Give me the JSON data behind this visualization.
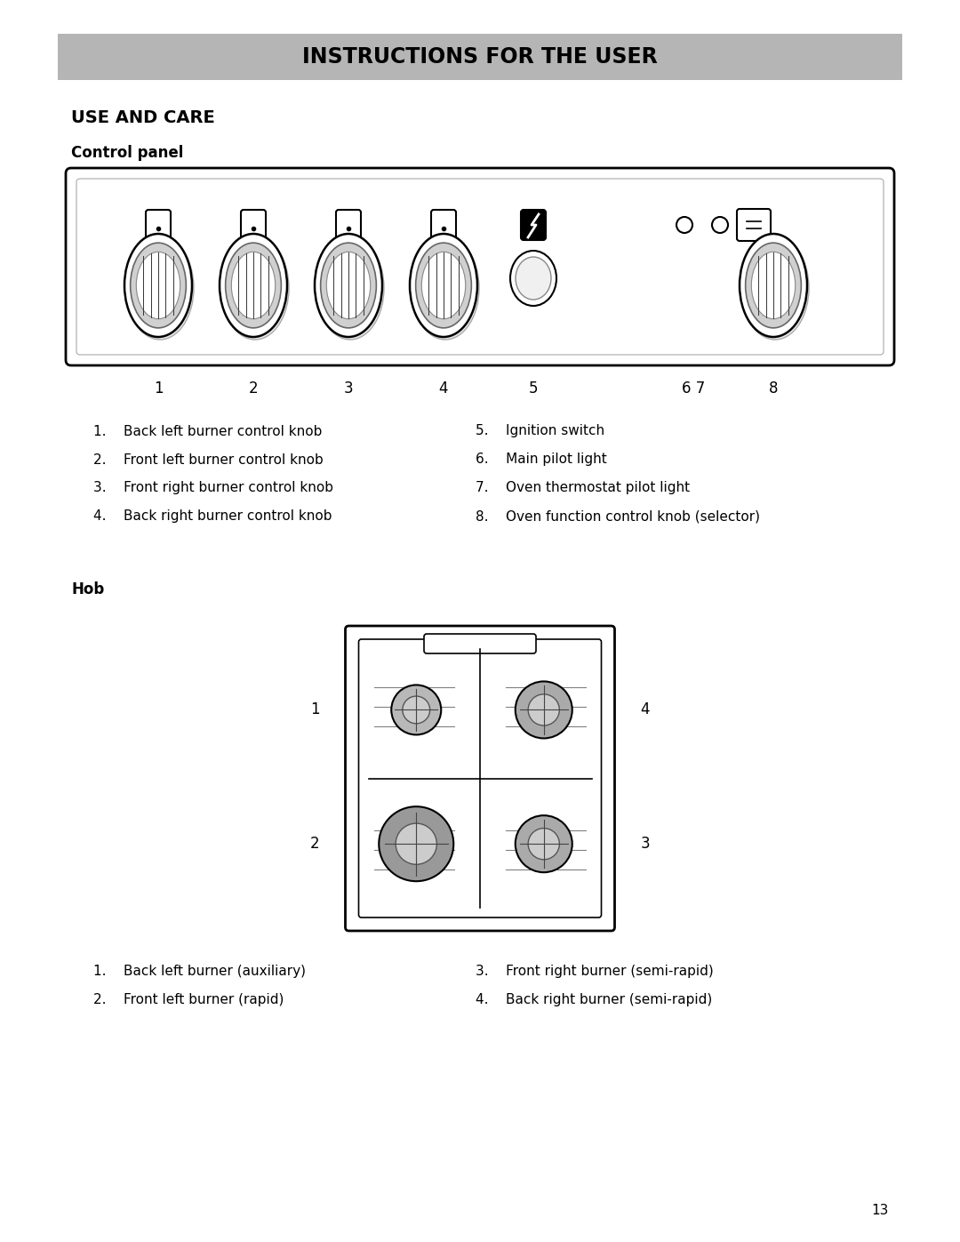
{
  "title": "INSTRUCTIONS FOR THE USER",
  "title_bg": "#b5b5b5",
  "section_title": "USE AND CARE",
  "subsection1": "Control panel",
  "subsection2": "Hob",
  "bg_color": "#ffffff",
  "page_number": "13",
  "control_panel_items_left": [
    "1.    Back left burner control knob",
    "2.    Front left burner control knob",
    "3.    Front right burner control knob",
    "4.    Back right burner control knob"
  ],
  "control_panel_items_right": [
    "5.    Ignition switch",
    "6.    Main pilot light",
    "7.    Oven thermostat pilot light",
    "8.    Oven function control knob (selector)"
  ],
  "hob_items_left": [
    "1.    Back left burner (auxiliary)",
    "2.    Front left burner (rapid)"
  ],
  "hob_items_right": [
    "3.    Front right burner (semi-rapid)",
    "4.    Back right burner (semi-rapid)"
  ]
}
